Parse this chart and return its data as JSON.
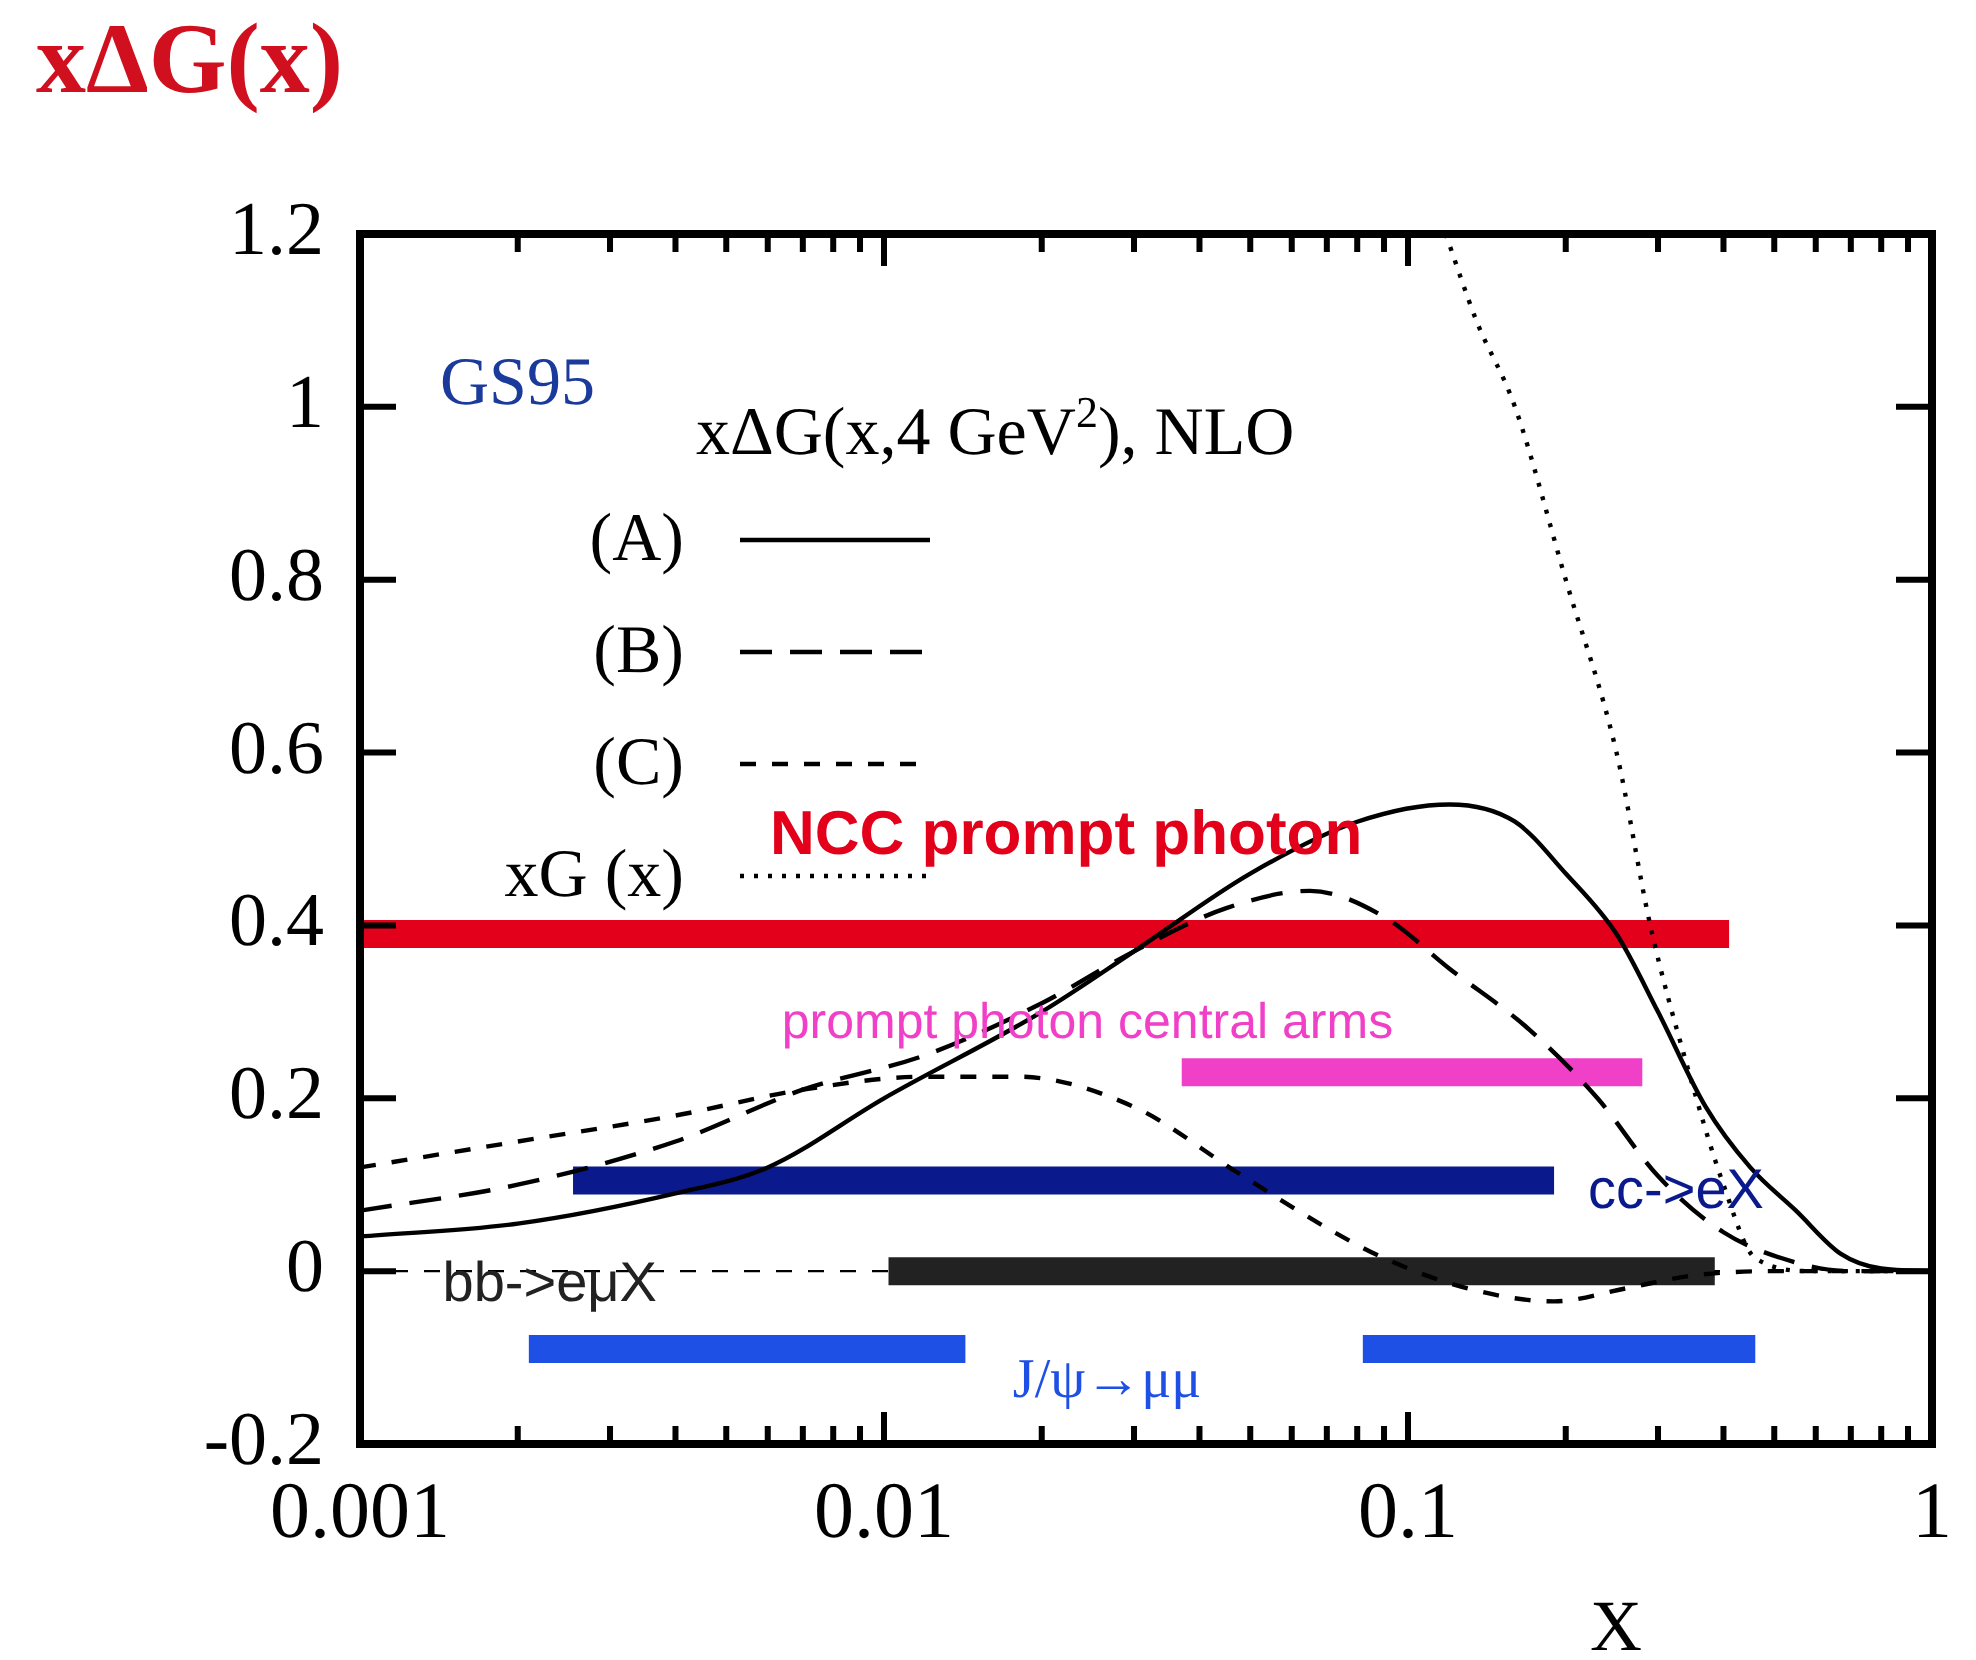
{
  "chart_data": {
    "type": "line",
    "ylabel": "xΔG(x)",
    "xlabel": "X",
    "log": "x",
    "legend": "top left",
    "legend_title": "xΔG(x,4 GeV$^{2}$), NLO",
    "annotations": [
      "GS95"
    ],
    "grid": false,
    "xlim": [
      0.001,
      1
    ],
    "ylim": [
      -0.2,
      1.2
    ],
    "xticks": [
      0.001,
      {
        "value": 0.002,
        "label": null
      },
      {
        "value": 0.003,
        "label": null
      },
      {
        "value": 0.004,
        "label": null
      },
      {
        "value": 0.005,
        "label": null
      },
      {
        "value": 0.006,
        "label": null
      },
      {
        "value": 0.007,
        "label": null
      },
      {
        "value": 0.008,
        "label": null
      },
      {
        "value": 0.009,
        "label": null
      },
      0.01,
      {
        "value": 0.02,
        "label": null
      },
      {
        "value": 0.03,
        "label": null
      },
      {
        "value": 0.04,
        "label": null
      },
      {
        "value": 0.05,
        "label": null
      },
      {
        "value": 0.06,
        "label": null
      },
      {
        "value": 0.07,
        "label": null
      },
      {
        "value": 0.08,
        "label": null
      },
      {
        "value": 0.09,
        "label": null
      },
      0.1,
      {
        "value": 0.2,
        "label": null
      },
      {
        "value": 0.3,
        "label": null
      },
      {
        "value": 0.4,
        "label": null
      },
      {
        "value": 0.5,
        "label": null
      },
      {
        "value": 0.6,
        "label": null
      },
      {
        "value": 0.7,
        "label": null
      },
      {
        "value": 0.8,
        "label": null
      },
      {
        "value": 0.9,
        "label": null
      },
      1
    ],
    "yticks": [
      -0.2,
      0,
      0.2,
      0.4,
      0.6,
      0.8,
      1,
      1.2
    ],
    "ref_lines": [
      {
        "axis": "y",
        "value": 0,
        "color": "#000000",
        "line_style": "dashed"
      }
    ],
    "series": [
      {
        "name": "(A)",
        "color": "#000000",
        "line_style": "solid",
        "x": [
          0.001,
          0.002,
          0.004,
          0.006,
          0.01,
          0.02,
          0.03,
          0.05,
          0.08,
          0.12,
          0.16,
          0.2,
          0.25,
          0.3,
          0.37,
          0.45,
          0.55,
          0.67,
          0.8,
          1
        ],
        "values": [
          0.04,
          0.055,
          0.09,
          0.12,
          0.2,
          0.3,
          0.37,
          0.46,
          0.52,
          0.54,
          0.52,
          0.46,
          0.39,
          0.3,
          0.19,
          0.12,
          0.07,
          0.02,
          0.003,
          0
        ]
      },
      {
        "name": "(B)",
        "color": "#000000",
        "line_style": "dashed",
        "x": [
          0.001,
          0.002,
          0.004,
          0.007,
          0.012,
          0.02,
          0.03,
          0.045,
          0.065,
          0.09,
          0.12,
          0.17,
          0.23,
          0.3,
          0.4,
          0.55,
          0.7,
          1
        ],
        "values": [
          0.07,
          0.1,
          0.15,
          0.21,
          0.25,
          0.31,
          0.37,
          0.42,
          0.44,
          0.41,
          0.35,
          0.28,
          0.2,
          0.11,
          0.045,
          0.01,
          0,
          0
        ]
      },
      {
        "name": "(C)",
        "color": "#000000",
        "line_style": "dashed",
        "x": [
          0.001,
          0.002,
          0.004,
          0.007,
          0.012,
          0.018,
          0.03,
          0.047,
          0.07,
          0.09,
          0.13,
          0.19,
          0.26,
          0.35,
          0.5,
          1
        ],
        "values": [
          0.12,
          0.15,
          0.18,
          0.21,
          0.225,
          0.225,
          0.19,
          0.115,
          0.05,
          0.015,
          -0.02,
          -0.035,
          -0.02,
          -0.005,
          0,
          0
        ]
      },
      {
        "name": "xG (x)",
        "color": "#000000",
        "line_style": "dotted",
        "x": [
          0.118,
          0.135,
          0.16,
          0.2,
          0.25,
          0.29,
          0.34,
          0.4,
          0.46,
          0.6,
          1
        ],
        "values": [
          1.2,
          1.1,
          1,
          0.8,
          0.6,
          0.4,
          0.24,
          0.1,
          0.015,
          0,
          0
        ]
      },
      {
        "name": "NCC prompt photon",
        "color": "#e3001b",
        "x": [
          0.001,
          0.41
        ],
        "values": [
          0.39,
          0.39
        ]
      },
      {
        "name": "prompt photon central arms",
        "color": "#f040c8",
        "x": [
          0.037,
          0.28
        ],
        "values": [
          0.23,
          0.23
        ]
      },
      {
        "name": "cc->eX",
        "color": "#0a1a8c",
        "x": [
          0.00255,
          0.19
        ],
        "values": [
          0.105,
          0.105
        ]
      },
      {
        "name": "bb->eμX",
        "color": "#222222",
        "x": [
          0.0102,
          0.385
        ],
        "values": [
          0,
          0
        ]
      },
      {
        "name": "J/ψ→μμ",
        "color": "#1e50e6",
        "x": [
          0.0021,
          0.0143,
          0.03,
          0.082,
          0.46
        ],
        "values": [
          -0.09,
          -0.09,
          null,
          -0.09,
          -0.09
        ]
      }
    ]
  }
}
